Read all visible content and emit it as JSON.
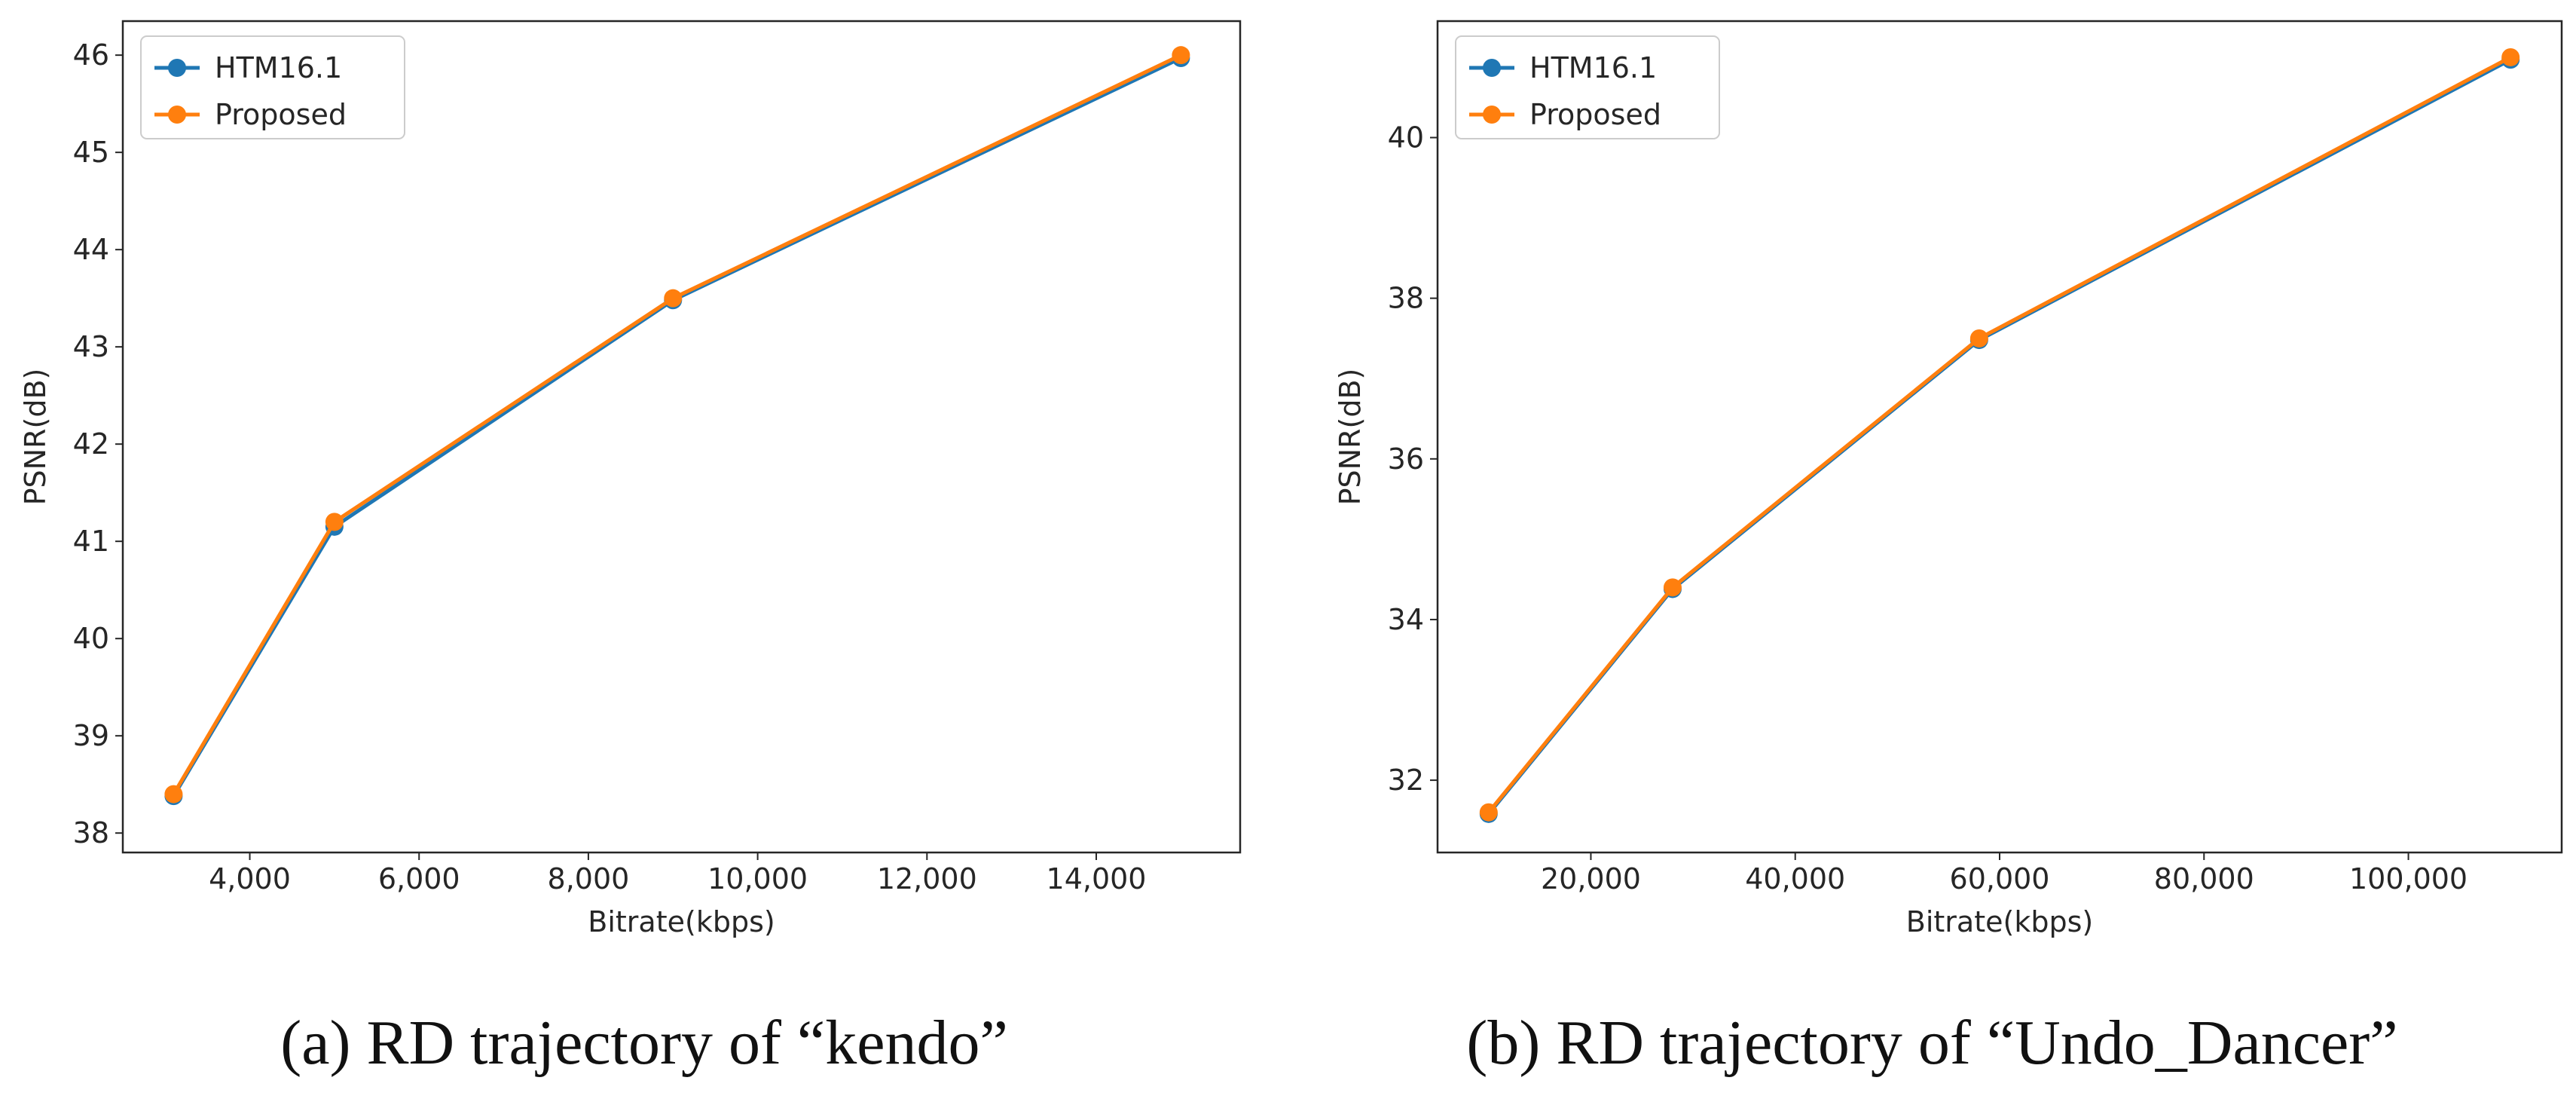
{
  "colors": {
    "htm": "#1f77b4",
    "proposed": "#ff7f0e",
    "axis": "#262626",
    "legend_border": "#cccccc"
  },
  "chart_data": [
    {
      "type": "line",
      "caption": "(a) RD trajectory of “kendo”",
      "xlabel": "Bitrate(kbps)",
      "ylabel": "PSNR(dB)",
      "xlim": [
        2500,
        15700
      ],
      "ylim": [
        37.8,
        46.35
      ],
      "xticks": [
        4000,
        6000,
        8000,
        10000,
        12000,
        14000
      ],
      "xtick_labels": [
        "4,000",
        "6,000",
        "8,000",
        "10,000",
        "12,000",
        "14,000"
      ],
      "yticks": [
        38,
        39,
        40,
        41,
        42,
        43,
        44,
        45,
        46
      ],
      "ytick_labels": [
        "38",
        "39",
        "40",
        "41",
        "42",
        "43",
        "44",
        "45",
        "46"
      ],
      "legend_position": "top-left",
      "series": [
        {
          "name": "HTM16.1",
          "color_key": "htm",
          "x": [
            3100,
            5000,
            9000,
            15000
          ],
          "y": [
            38.38,
            41.15,
            43.48,
            45.97
          ]
        },
        {
          "name": "Proposed",
          "color_key": "proposed",
          "x": [
            3100,
            5000,
            9000,
            15000
          ],
          "y": [
            38.4,
            41.2,
            43.5,
            46.0
          ]
        }
      ]
    },
    {
      "type": "line",
      "caption": "(b) RD trajectory of “Undo_Dancer”",
      "xlabel": "Bitrate(kbps)",
      "ylabel": "PSNR(dB)",
      "xlim": [
        5000,
        115000
      ],
      "ylim": [
        31.1,
        41.45
      ],
      "xticks": [
        20000,
        40000,
        60000,
        80000,
        100000
      ],
      "xtick_labels": [
        "20,000",
        "40,000",
        "60,000",
        "80,000",
        "100,000"
      ],
      "yticks": [
        32,
        34,
        36,
        38,
        40
      ],
      "ytick_labels": [
        "32",
        "34",
        "36",
        "38",
        "40"
      ],
      "legend_position": "top-left",
      "series": [
        {
          "name": "HTM16.1",
          "color_key": "htm",
          "x": [
            10000,
            28000,
            58000,
            110000
          ],
          "y": [
            31.58,
            34.38,
            37.48,
            40.97
          ]
        },
        {
          "name": "Proposed",
          "color_key": "proposed",
          "x": [
            10000,
            28000,
            58000,
            110000
          ],
          "y": [
            31.6,
            34.4,
            37.5,
            41.0
          ]
        }
      ]
    }
  ]
}
